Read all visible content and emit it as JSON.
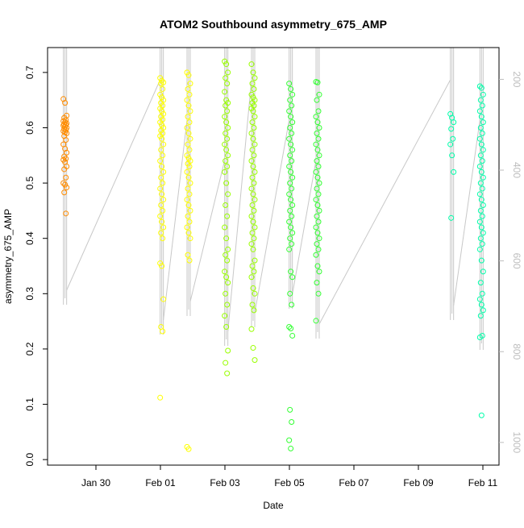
{
  "chart_data": {
    "type": "scatter",
    "title": "ATOM2 Southbound asymmetry_675_AMP",
    "xlabel": "Date",
    "ylabel": "asymmetry_675_AMP",
    "x_axis": {
      "type": "date",
      "range": [
        "2017-01-28T12:00",
        "2017-02-11T12:00"
      ],
      "ticks": [
        {
          "value": "2017-01-30",
          "label": "Jan 30"
        },
        {
          "value": "2017-02-01",
          "label": "Feb 01"
        },
        {
          "value": "2017-02-03",
          "label": "Feb 03"
        },
        {
          "value": "2017-02-05",
          "label": "Feb 05"
        },
        {
          "value": "2017-02-07",
          "label": "Feb 07"
        },
        {
          "value": "2017-02-09",
          "label": "Feb 09"
        },
        {
          "value": "2017-02-11",
          "label": "Feb 11"
        }
      ]
    },
    "y_axis": {
      "range": [
        -0.01,
        0.745
      ],
      "ticks": [
        {
          "value": 0.0,
          "label": "0.0"
        },
        {
          "value": 0.1,
          "label": "0.1"
        },
        {
          "value": 0.2,
          "label": "0.2"
        },
        {
          "value": 0.3,
          "label": "0.3"
        },
        {
          "value": 0.4,
          "label": "0.4"
        },
        {
          "value": 0.5,
          "label": "0.5"
        },
        {
          "value": 0.6,
          "label": "0.6"
        },
        {
          "value": 0.7,
          "label": "0.7"
        }
      ]
    },
    "y2_axis": {
      "range": [
        1050,
        130
      ],
      "reversed": true,
      "color": "#bdbdbd",
      "ticks": [
        {
          "value": 200,
          "label": "200"
        },
        {
          "value": 400,
          "label": "400"
        },
        {
          "value": 600,
          "label": "600"
        },
        {
          "value": 800,
          "label": "800"
        },
        {
          "value": 1000,
          "label": "1000"
        }
      ]
    },
    "grid": false,
    "legend": "none",
    "profile_line_color": "#c8c8c8",
    "series": [
      {
        "color": "#ff8c00",
        "points": [
          {
            "x": "2017-01-29T01:00",
            "ys": [
              0.652,
              0.645,
              0.622,
              0.618,
              0.614,
              0.612,
              0.61,
              0.608,
              0.606,
              0.605,
              0.604,
              0.602,
              0.6,
              0.598,
              0.596,
              0.594,
              0.592,
              0.59,
              0.585,
              0.578,
              0.57,
              0.562,
              0.555,
              0.548,
              0.544,
              0.542,
              0.538,
              0.53,
              0.525,
              0.51,
              0.5,
              0.497,
              0.492,
              0.483,
              0.445
            ]
          }
        ]
      },
      {
        "color": "#ffff00",
        "points": [
          {
            "x": "2017-02-01T01:00",
            "ys": [
              0.69,
              0.685,
              0.682,
              0.68,
              0.67,
              0.66,
              0.655,
              0.65,
              0.645,
              0.64,
              0.635,
              0.63,
              0.625,
              0.62,
              0.615,
              0.61,
              0.605,
              0.6,
              0.595,
              0.59,
              0.585,
              0.58,
              0.57,
              0.56,
              0.55,
              0.54,
              0.53,
              0.52,
              0.51,
              0.5,
              0.49,
              0.48,
              0.47,
              0.46,
              0.45,
              0.44,
              0.43,
              0.42,
              0.41,
              0.4,
              0.355,
              0.35,
              0.29,
              0.24,
              0.232,
              0.112
            ]
          },
          {
            "x": "2017-02-01T21:00",
            "ys": [
              0.7,
              0.695,
              0.68,
              0.67,
              0.66,
              0.65,
              0.64,
              0.63,
              0.62,
              0.61,
              0.6,
              0.59,
              0.58,
              0.57,
              0.56,
              0.55,
              0.545,
              0.54,
              0.535,
              0.53,
              0.52,
              0.51,
              0.5,
              0.49,
              0.48,
              0.47,
              0.46,
              0.45,
              0.44,
              0.43,
              0.42,
              0.41,
              0.4,
              0.37,
              0.36,
              0.023,
              0.019
            ]
          }
        ]
      },
      {
        "color": "#99ff00",
        "points": [
          {
            "x": "2017-02-03T01:00",
            "ys": [
              0.72,
              0.715,
              0.7,
              0.69,
              0.68,
              0.665,
              0.65,
              0.645,
              0.64,
              0.63,
              0.62,
              0.61,
              0.6,
              0.59,
              0.58,
              0.57,
              0.56,
              0.55,
              0.54,
              0.53,
              0.52,
              0.5,
              0.48,
              0.46,
              0.44,
              0.42,
              0.4,
              0.38,
              0.37,
              0.36,
              0.34,
              0.33,
              0.32,
              0.3,
              0.28,
              0.26,
              0.24,
              0.197,
              0.175,
              0.156
            ]
          },
          {
            "x": "2017-02-03T21:00",
            "ys": [
              0.715,
              0.7,
              0.69,
              0.68,
              0.67,
              0.66,
              0.655,
              0.65,
              0.645,
              0.64,
              0.635,
              0.63,
              0.62,
              0.61,
              0.6,
              0.59,
              0.58,
              0.57,
              0.56,
              0.55,
              0.54,
              0.53,
              0.52,
              0.51,
              0.5,
              0.49,
              0.48,
              0.47,
              0.46,
              0.45,
              0.44,
              0.43,
              0.42,
              0.41,
              0.4,
              0.39,
              0.38,
              0.36,
              0.35,
              0.34,
              0.33,
              0.31,
              0.3,
              0.28,
              0.27,
              0.236,
              0.202,
              0.18
            ]
          }
        ]
      },
      {
        "color": "#33ff33",
        "points": [
          {
            "x": "2017-02-05T01:00",
            "ys": [
              0.68,
              0.67,
              0.66,
              0.65,
              0.64,
              0.63,
              0.62,
              0.61,
              0.6,
              0.59,
              0.58,
              0.57,
              0.56,
              0.55,
              0.54,
              0.53,
              0.52,
              0.51,
              0.5,
              0.49,
              0.48,
              0.47,
              0.46,
              0.45,
              0.44,
              0.43,
              0.42,
              0.41,
              0.4,
              0.39,
              0.38,
              0.34,
              0.33,
              0.3,
              0.28,
              0.24,
              0.237,
              0.224,
              0.09,
              0.068,
              0.035,
              0.02
            ]
          },
          {
            "x": "2017-02-05T21:00",
            "ys": [
              0.683,
              0.682,
              0.66,
              0.65,
              0.63,
              0.62,
              0.61,
              0.6,
              0.59,
              0.58,
              0.57,
              0.56,
              0.55,
              0.54,
              0.53,
              0.52,
              0.51,
              0.5,
              0.49,
              0.48,
              0.47,
              0.46,
              0.45,
              0.44,
              0.43,
              0.42,
              0.41,
              0.4,
              0.39,
              0.38,
              0.37,
              0.35,
              0.34,
              0.32,
              0.3,
              0.251
            ]
          }
        ]
      },
      {
        "color": "#00ffaa",
        "points": [
          {
            "x": "2017-02-10T01:00",
            "ys": [
              0.625,
              0.618,
              0.61,
              0.598,
              0.58,
              0.57,
              0.55,
              0.52,
              0.437
            ]
          },
          {
            "x": "2017-02-10T23:00",
            "ys": [
              0.675,
              0.672,
              0.66,
              0.65,
              0.64,
              0.63,
              0.62,
              0.61,
              0.6,
              0.59,
              0.58,
              0.57,
              0.56,
              0.55,
              0.54,
              0.53,
              0.52,
              0.51,
              0.5,
              0.49,
              0.48,
              0.47,
              0.46,
              0.45,
              0.44,
              0.43,
              0.42,
              0.41,
              0.4,
              0.39,
              0.38,
              0.36,
              0.34,
              0.32,
              0.3,
              0.29,
              0.28,
              0.27,
              0.26,
              0.224,
              0.221,
              0.08
            ]
          }
        ]
      }
    ]
  }
}
